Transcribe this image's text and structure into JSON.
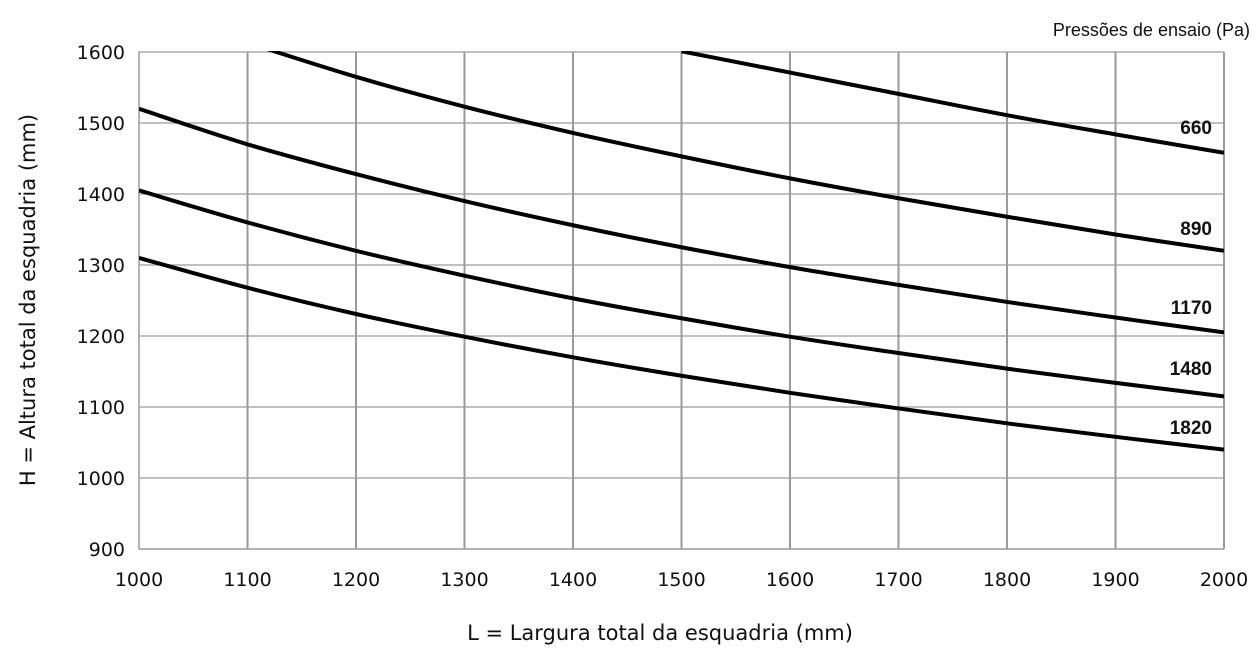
{
  "chart_data": {
    "type": "line",
    "xlabel": "L = Largura total da esquadria (mm)",
    "ylabel": "H = Altura total da esquadria (mm)",
    "legend_title": "Pressões de ensaio  (Pa)",
    "legend_placement": "top-right",
    "grid": true,
    "xlim": [
      1000,
      2000
    ],
    "ylim": [
      900,
      1600
    ],
    "xticks": [
      "1000",
      "1100",
      "1200",
      "1300",
      "1400",
      "1500",
      "1600",
      "1700",
      "1800",
      "1900",
      "2000"
    ],
    "yticks": [
      "900",
      "1000",
      "1100",
      "1200",
      "1300",
      "1400",
      "1500",
      "1600"
    ],
    "series": [
      {
        "name": "660",
        "x": [
          1100,
          1200,
          1300,
          1400,
          1500,
          1600,
          1700,
          1800,
          1900,
          2000
        ],
        "y": [
          1613,
          1565,
          1523,
          1486,
          1453,
          1422,
          1394,
          1368,
          1343,
          1320
        ]
      },
      {
        "name": "890",
        "x": [
          1000,
          1100,
          1200,
          1300,
          1400,
          1500,
          1600,
          1700,
          1800,
          1900,
          2000
        ],
        "y": [
          1520,
          1470,
          1428,
          1390,
          1356,
          1325,
          1297,
          1272,
          1248,
          1226,
          1205
        ]
      },
      {
        "name": "1170",
        "x": [
          1000,
          1100,
          1200,
          1300,
          1400,
          1500,
          1600,
          1700,
          1800,
          1900,
          2000
        ],
        "y": [
          1405,
          1360,
          1320,
          1285,
          1253,
          1225,
          1199,
          1176,
          1154,
          1134,
          1115
        ]
      },
      {
        "name": "1480",
        "x": [
          1000,
          1100,
          1200,
          1300,
          1400,
          1500,
          1600,
          1700,
          1800,
          1900,
          2000
        ],
        "y": [
          1310,
          1268,
          1231,
          1199,
          1170,
          1144,
          1120,
          1098,
          1077,
          1058,
          1040
        ]
      },
      {
        "name": "1820",
        "x": [
          1500,
          1600,
          1700,
          1800,
          1900,
          2000
        ],
        "y": [
          1601,
          1571,
          1541,
          1511,
          1484,
          1458
        ]
      }
    ]
  }
}
